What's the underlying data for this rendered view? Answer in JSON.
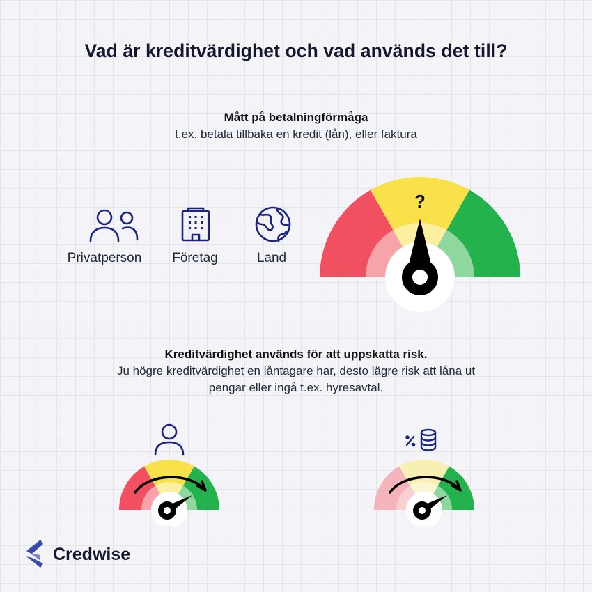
{
  "title": "Vad är kreditvärdighet och vad används det till?",
  "section1": {
    "heading": "Mått på betalningförmåga",
    "subtext": "t.ex. betala tillbaka en kredit (lån), eller faktura"
  },
  "categories": [
    {
      "label": "Privatperson",
      "icon": "people-icon"
    },
    {
      "label": "Företag",
      "icon": "building-icon"
    },
    {
      "label": "Land",
      "icon": "globe-icon"
    }
  ],
  "gauge_main": {
    "mark": "?"
  },
  "section2": {
    "heading": "Kreditvärdighet används för att uppskatta risk.",
    "line1": "Ju högre kreditvärdighet en låntagare har, desto lägre risk att låna ut",
    "line2": "pengar eller ingå t.ex. hyresavtal."
  },
  "small_gauges": [
    {
      "icon": "person-icon"
    },
    {
      "icon": "percent-coins-icon"
    }
  ],
  "brand": {
    "name": "Credwise"
  },
  "colors": {
    "red": "#f0505f",
    "yellow": "#f9e14b",
    "green": "#23b24b",
    "navy": "#1a237e",
    "needle": "#000000"
  }
}
